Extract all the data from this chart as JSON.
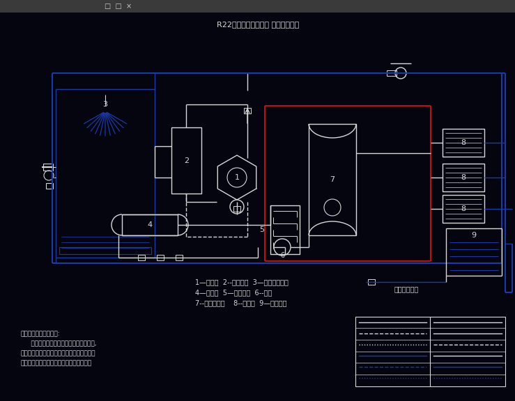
{
  "title": "R22液泵供液、水冲霜 水系统原理图",
  "bg_color": "#050510",
  "W": "#d8d8d8",
  "B": "#1a3aaa",
  "R": "#bb1111",
  "legend_text_1": "1—压缩机  2--油分离器  3—蒸发式冷凝器",
  "legend_text_2": "4—储液器  5—油回收器  6--液泵",
  "legend_text_3": "7--低压循环桶    8--冷风机  9—冲霜水池",
  "note_1": "蒸发式冷凝器液位控制:",
  "note_2": "     当蒸发式冷凝器集水盘水位低于下限时,",
  "note_3": "由液位控制器发出指令，自动换向阀联通供带",
  "note_4": "水泵和盐罐水池，冷凝器自冲霜水池补水。",
  "outdoor_label": "室外供水管网"
}
